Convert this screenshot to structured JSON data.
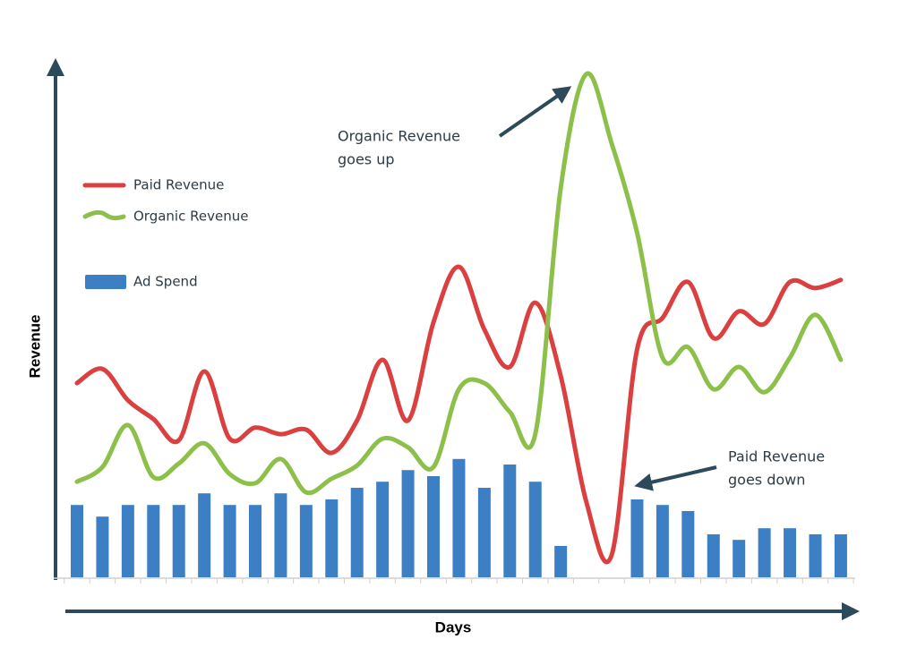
{
  "chart_data": {
    "type": "combo",
    "x_label": "Days",
    "y_label": "Revenue",
    "categories": [
      null,
      null,
      null,
      null,
      null,
      null,
      null,
      null,
      null,
      null,
      null,
      null,
      null,
      null,
      null,
      null,
      null,
      null,
      null,
      null,
      null,
      null,
      null,
      null,
      null,
      null,
      null,
      null,
      null,
      null,
      null
    ],
    "ylim": [
      0,
      100
    ],
    "series": [
      {
        "name": "Paid Revenue",
        "type": "line",
        "color": "#d9403f",
        "values": [
          38.4,
          41.2,
          35.0,
          31.3,
          27.1,
          40.7,
          27.4,
          29.6,
          28.3,
          29.2,
          24.6,
          31.0,
          43.0,
          31.0,
          50.4,
          61.4,
          49.0,
          41.6,
          54.3,
          39.8,
          15.0,
          4.4,
          45.1,
          51.3,
          58.4,
          47.3,
          52.6,
          50.1,
          58.4,
          57.2,
          58.8
        ]
      },
      {
        "name": "Organic Revenue",
        "type": "line",
        "color": "#8dc04a",
        "values": [
          18.9,
          21.8,
          30.1,
          19.8,
          22.5,
          26.5,
          20.4,
          18.6,
          23.4,
          16.8,
          19.5,
          22.1,
          27.4,
          25.7,
          21.8,
          37.2,
          38.4,
          32.7,
          28.3,
          77.0,
          99.5,
          85.8,
          68.1,
          43.4,
          45.5,
          37.2,
          41.6,
          36.6,
          43.4,
          51.9,
          43.0
        ]
      },
      {
        "name": "Ad Spend",
        "type": "bar",
        "color": "#3d7fc4",
        "values": [
          14.3,
          12.0,
          14.3,
          14.3,
          14.3,
          16.6,
          14.3,
          14.3,
          16.6,
          14.3,
          15.4,
          17.7,
          18.9,
          21.2,
          20.0,
          23.4,
          17.7,
          22.3,
          18.9,
          6.2,
          null,
          null,
          15.4,
          14.3,
          13.1,
          8.5,
          7.4,
          9.7,
          9.7,
          8.5,
          8.5
        ]
      }
    ],
    "annotations": [
      {
        "lines": [
          "Organic Revenue",
          "goes up"
        ]
      },
      {
        "lines": [
          "Paid Revenue",
          "goes down"
        ]
      }
    ]
  }
}
